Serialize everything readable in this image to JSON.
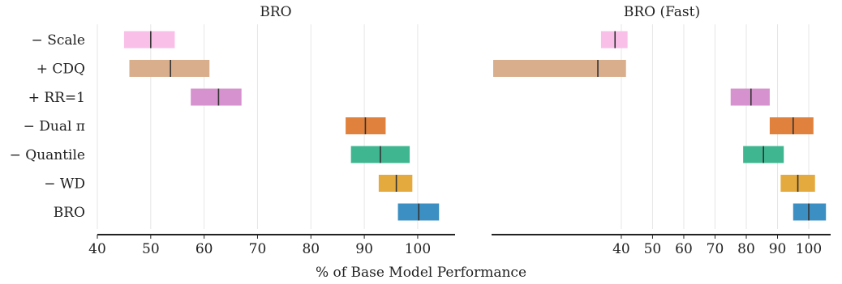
{
  "chart_data": {
    "type": "bar",
    "title": "",
    "xlabel": "% of Base Model Performance",
    "categories": [
      "− Scale",
      "+ CDQ",
      "+ RR=1",
      "− Dual π",
      "− Quantile",
      "− WD",
      "BRO"
    ],
    "colors": [
      "#f9bfe8",
      "#d8ae8d",
      "#d692cf",
      "#e0823d",
      "#3fb690",
      "#e5aa3e",
      "#3b8fc2"
    ],
    "panels": [
      {
        "title": "BRO",
        "xlim": [
          40,
          107
        ],
        "ticks": [
          40,
          50,
          60,
          70,
          80,
          90,
          100
        ],
        "intervals": [
          {
            "low": 45.0,
            "high": 54.5,
            "median": 50.0
          },
          {
            "low": 46.0,
            "high": 61.0,
            "median": 53.7
          },
          {
            "low": 57.5,
            "high": 67.0,
            "median": 62.7
          },
          {
            "low": 86.5,
            "high": 94.0,
            "median": 90.2
          },
          {
            "low": 87.5,
            "high": 98.5,
            "median": 93.0
          },
          {
            "low": 92.7,
            "high": 99.0,
            "median": 96.0
          },
          {
            "low": 96.3,
            "high": 104.0,
            "median": 100.2
          }
        ]
      },
      {
        "title": "BRO (Fast)",
        "xlim": [
          -1,
          107
        ],
        "ticks": [
          40,
          50,
          60,
          70,
          80,
          90,
          100
        ],
        "intervals": [
          {
            "low": 33.5,
            "high": 42.0,
            "median": 38.0
          },
          {
            "low": -1.0,
            "high": 41.5,
            "median": 32.5
          },
          {
            "low": 75.0,
            "high": 87.5,
            "median": 81.5
          },
          {
            "low": 87.5,
            "high": 101.5,
            "median": 95.0
          },
          {
            "low": 79.0,
            "high": 92.0,
            "median": 85.5
          },
          {
            "low": 91.0,
            "high": 102.0,
            "median": 96.5
          },
          {
            "low": 95.0,
            "high": 105.5,
            "median": 100.0
          }
        ]
      }
    ]
  }
}
